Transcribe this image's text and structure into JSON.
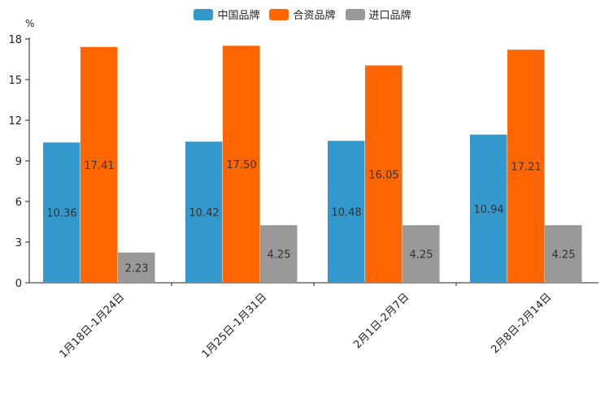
{
  "chart_data": {
    "type": "bar",
    "unit": "%",
    "categories": [
      "1月18日-1月24日",
      "1月25日-1月31日",
      "2月1日-2月7日",
      "2月8日-2月14日"
    ],
    "series": [
      {
        "name": "中国品牌",
        "color": "#3399cc",
        "values": [
          10.36,
          10.42,
          10.48,
          10.94
        ],
        "labels": [
          "10.36",
          "10.42",
          "10.48",
          "10.94"
        ]
      },
      {
        "name": "合资品牌",
        "color": "#ff6600",
        "values": [
          17.41,
          17.5,
          16.05,
          17.21
        ],
        "labels": [
          "17.41",
          "17.50",
          "16.05",
          "17.21"
        ]
      },
      {
        "name": "进口品牌",
        "color": "#999999",
        "values": [
          2.23,
          4.25,
          4.25,
          4.25
        ],
        "labels": [
          "2.23",
          "4.25",
          "4.25",
          "4.25"
        ]
      }
    ],
    "yticks": [
      "0",
      "3",
      "6",
      "9",
      "12",
      "15",
      "18"
    ],
    "ylim": [
      0,
      18
    ],
    "legend_position": "top-center",
    "grid": false
  }
}
